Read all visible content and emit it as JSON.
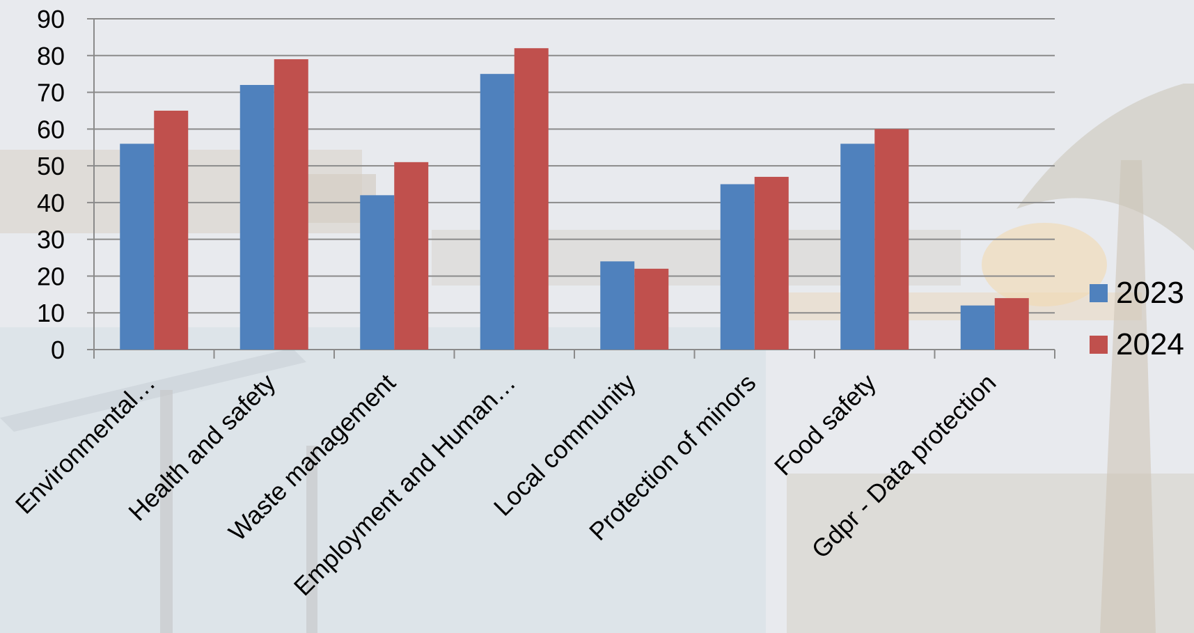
{
  "colors": {
    "series_2023": "#4F81BD",
    "series_2024": "#C0504D",
    "grid": "#8a8a8a"
  },
  "chart_data": {
    "type": "bar",
    "title": "",
    "xlabel": "",
    "ylabel": "",
    "ylim": [
      0,
      90
    ],
    "yticks": [
      0,
      10,
      20,
      30,
      40,
      50,
      60,
      70,
      80,
      90
    ],
    "grid": true,
    "legend_position": "right",
    "categories": [
      "Environmental…",
      "Health and safety",
      "Waste management",
      "Employment and Human…",
      "Local community",
      "Protection of minors",
      "Food safety",
      "Gdpr - Data protection"
    ],
    "series": [
      {
        "name": "2023",
        "values": [
          56,
          72,
          42,
          75,
          24,
          45,
          56,
          12
        ]
      },
      {
        "name": "2024",
        "values": [
          65,
          79,
          51,
          82,
          22,
          47,
          60,
          14
        ]
      }
    ]
  }
}
